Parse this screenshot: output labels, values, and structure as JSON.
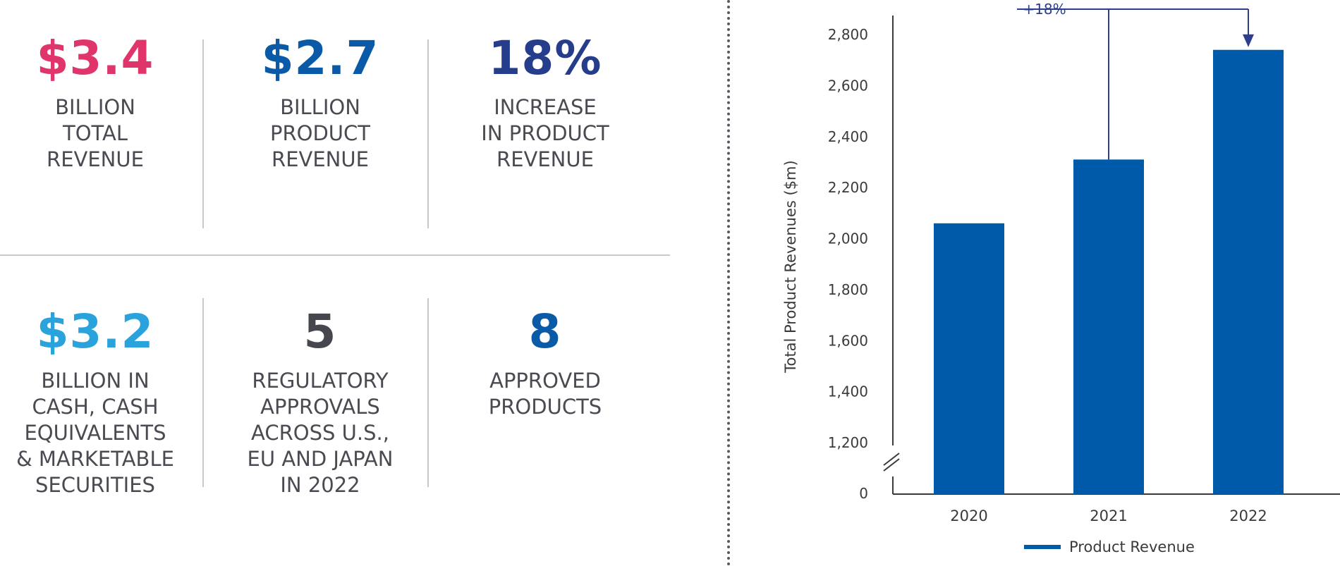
{
  "stats": [
    {
      "value": "$3.4",
      "label": "BILLION\nTOTAL\nREVENUE",
      "color": "#e0356b"
    },
    {
      "value": "$2.7",
      "label": "BILLION\nPRODUCT\nREVENUE",
      "color": "#0a5aa8"
    },
    {
      "value": "18%",
      "label": "INCREASE\nIN PRODUCT\nREVENUE",
      "color": "#263d8c"
    },
    {
      "value": "$3.2",
      "label": "BILLION IN\nCASH, CASH\nEQUIVALENTS\n& MARKETABLE\nSECURITIES",
      "color": "#2aa3dc"
    },
    {
      "value": "5",
      "label": "REGULATORY\nAPPROVALS\nACROSS U.S.,\nEU AND JAPAN\nIN 2022",
      "color": "#46464e"
    },
    {
      "value": "8",
      "label": "APPROVED\nPRODUCTS",
      "color": "#0a5aa8"
    }
  ],
  "chart_data": {
    "type": "bar",
    "categories": [
      "2020",
      "2021",
      "2022"
    ],
    "series": [
      {
        "name": "Product Revenue",
        "values": [
          2060,
          2310,
          2740
        ]
      }
    ],
    "ylabel": "Total Product Revenues ($m)",
    "xlabel": "",
    "yticks": [
      "0",
      "1,200",
      "1,400",
      "1,600",
      "1,800",
      "2,000",
      "2,200",
      "2,400",
      "2,600",
      "2,800"
    ],
    "ylim": [
      1200,
      2800
    ],
    "axis_break": true,
    "annotation": "+18%",
    "legend": "Product Revenue",
    "bar_color": "#005aaa",
    "annotation_color": "#2c3e8f"
  }
}
